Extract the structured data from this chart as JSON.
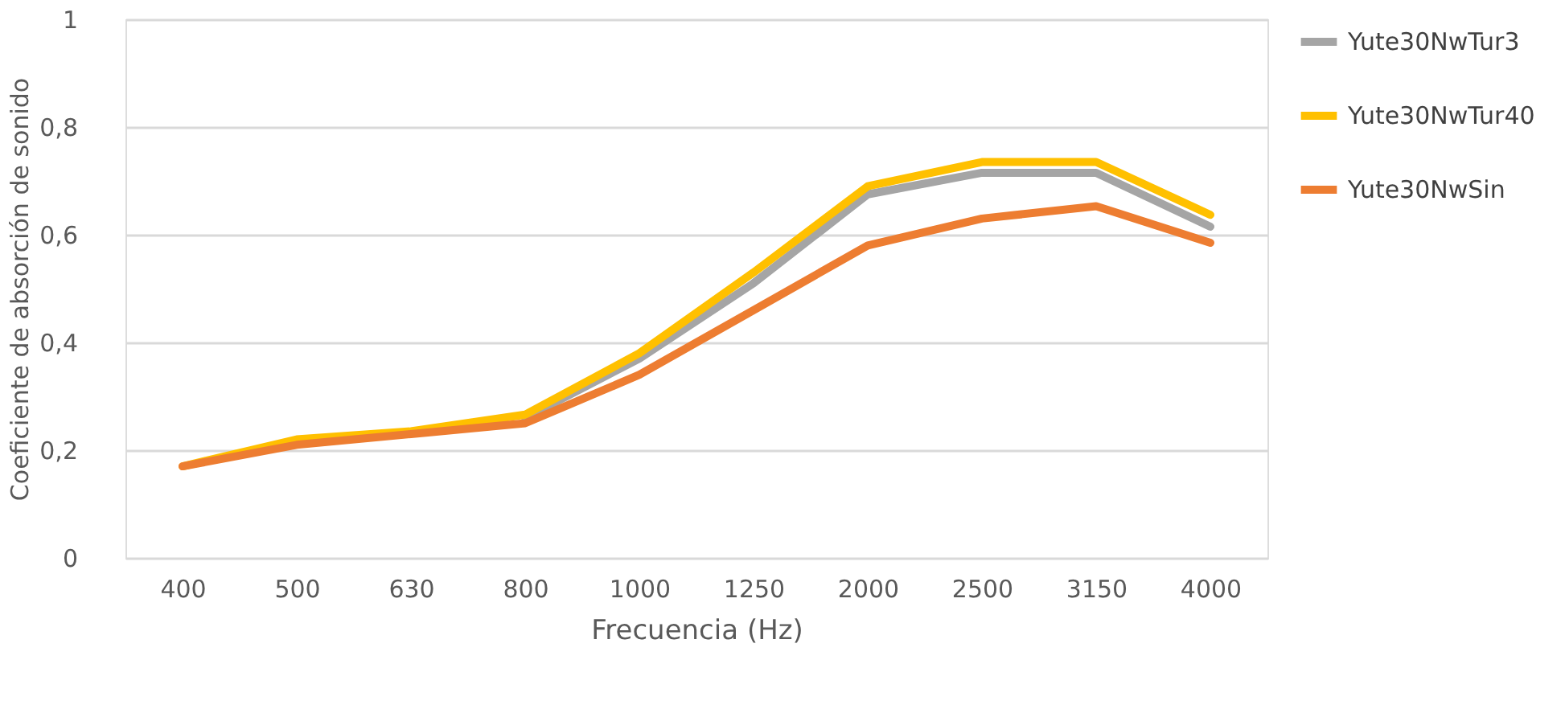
{
  "chart_data": {
    "type": "line",
    "xlabel": "Frecuencia (Hz)",
    "ylabel": "Coeficiente de absorción de sonido",
    "categories": [
      "400",
      "500",
      "630",
      "800",
      "1000",
      "1250",
      "2000",
      "2500",
      "3150",
      "4000"
    ],
    "series": [
      {
        "name": "Yute30NwTur3",
        "color": "#a5a5a5",
        "values": [
          null,
          null,
          null,
          0.26,
          0.37,
          0.51,
          0.675,
          0.715,
          0.715,
          0.615
        ]
      },
      {
        "name": "Yute30NwTur40",
        "color": "#ffc000",
        "values": [
          0.17,
          0.22,
          0.235,
          0.266,
          0.38,
          0.53,
          0.69,
          0.735,
          0.735,
          0.637
        ]
      },
      {
        "name": "Yute30NwSin",
        "color": "#ed7d31",
        "values": [
          0.17,
          0.21,
          0.23,
          0.25,
          0.34,
          0.46,
          0.58,
          0.63,
          0.653,
          0.585
        ]
      }
    ],
    "ylim": [
      0,
      1
    ],
    "yticks": [
      0,
      {
        "value": 0.2,
        "label": "0,2"
      },
      {
        "value": 0.4,
        "label": "0,4"
      },
      {
        "value": 0.6,
        "label": "0,6"
      },
      {
        "value": 0.8,
        "label": "0,8"
      },
      1
    ],
    "grid": "y",
    "legend": "right",
    "marker": "none",
    "line_style": "solid"
  }
}
